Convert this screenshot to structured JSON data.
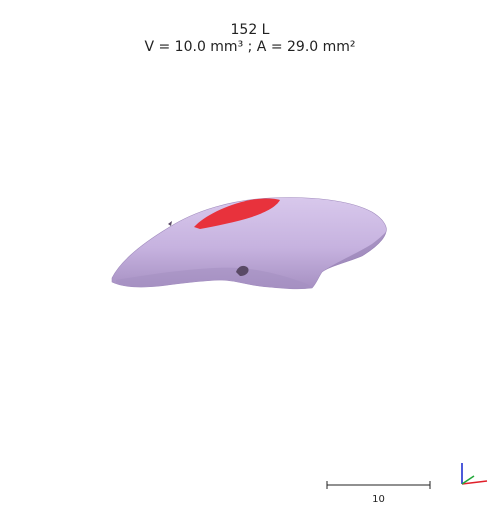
{
  "title": {
    "line1": "152 L",
    "line2": "V = 10.0 mm³ ; A = 29.0 mm²"
  },
  "model": {
    "surface_color": "#c9b6e0",
    "shadow_color": "#9c86b7",
    "highlight_region_color": "#e8323c"
  },
  "scale_bar": {
    "label": "10"
  },
  "axes": {
    "x_color": "#e0202a",
    "y_color": "#22a83a",
    "z_color": "#2030d0"
  }
}
